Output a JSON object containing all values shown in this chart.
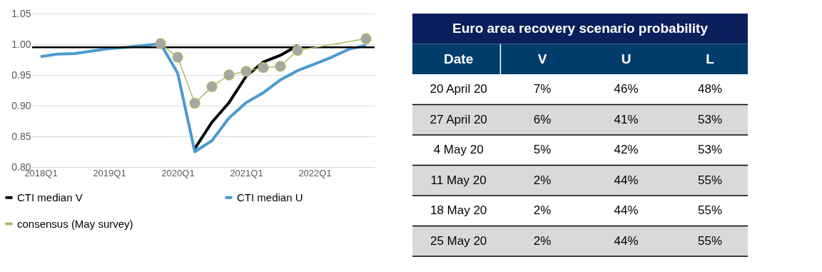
{
  "chart_data": [
    {
      "type": "line",
      "categories": [
        "2018Q1",
        null,
        null,
        null,
        "2019Q1",
        null,
        null,
        null,
        "2020Q1",
        null,
        null,
        null,
        "2021Q1",
        null,
        null,
        null,
        "2022Q1",
        null,
        null,
        null
      ],
      "series": [
        {
          "name": "CTI median V",
          "color": "#000000",
          "values": [
            null,
            null,
            null,
            null,
            null,
            null,
            null,
            null,
            null,
            0.83,
            0.873,
            0.905,
            0.948,
            0.971,
            0.982,
            0.998,
            null,
            null,
            null,
            null
          ]
        },
        {
          "name": "CTI median U",
          "color": "#4a9ad0",
          "values": [
            0.98,
            0.984,
            0.985,
            0.989,
            0.993,
            0.995,
            0.998,
            1.001,
            0.953,
            0.825,
            0.843,
            0.88,
            0.905,
            0.921,
            0.942,
            0.957,
            0.968,
            0.979,
            0.992,
            0.998
          ]
        },
        {
          "name": "consensus (May survey)",
          "color": "#adb96a",
          "marker": "circle",
          "values": [
            null,
            null,
            null,
            null,
            null,
            null,
            null,
            1.001,
            0.979,
            0.904,
            0.931,
            0.95,
            0.956,
            0.962,
            0.964,
            0.99,
            null,
            null,
            null,
            1.009
          ]
        }
      ],
      "ylim": [
        0.8,
        1.05
      ],
      "yticks": [
        {
          "value": 0.8,
          "label": "0.80"
        },
        {
          "value": 0.85,
          "label": "0.85"
        },
        {
          "value": 0.9,
          "label": "0.90"
        },
        {
          "value": 0.95,
          "label": "0.95"
        },
        {
          "value": 1.0,
          "label": "1.00"
        },
        {
          "value": 1.05,
          "label": "1.05"
        }
      ],
      "ref_lines": [
        {
          "axis": "y",
          "value": 0.995,
          "color": "#000000"
        }
      ],
      "grid": "y",
      "legend": "bottom"
    },
    {
      "type": "other",
      "title": "Euro area recovery scenario probability",
      "xlabel": "Date",
      "categories": [
        "20 April 20",
        "27 April 20",
        "4 May 20",
        "11 May 20",
        "18 May 20",
        "25 May 20"
      ],
      "series": [
        {
          "name": "V",
          "values": [
            7,
            6,
            5,
            2,
            2,
            2
          ],
          "value_labels": [
            "7%",
            "6%",
            "5%",
            "2%",
            "2%",
            "2%"
          ]
        },
        {
          "name": "U",
          "values": [
            46,
            41,
            42,
            44,
            44,
            44
          ],
          "value_labels": [
            "46%",
            "41%",
            "42%",
            "44%",
            "44%",
            "44%"
          ]
        },
        {
          "name": "L",
          "values": [
            48,
            53,
            53,
            55,
            55,
            55
          ],
          "value_labels": [
            "48%",
            "53%",
            "53%",
            "55%",
            "55%",
            "55%"
          ]
        }
      ]
    }
  ]
}
